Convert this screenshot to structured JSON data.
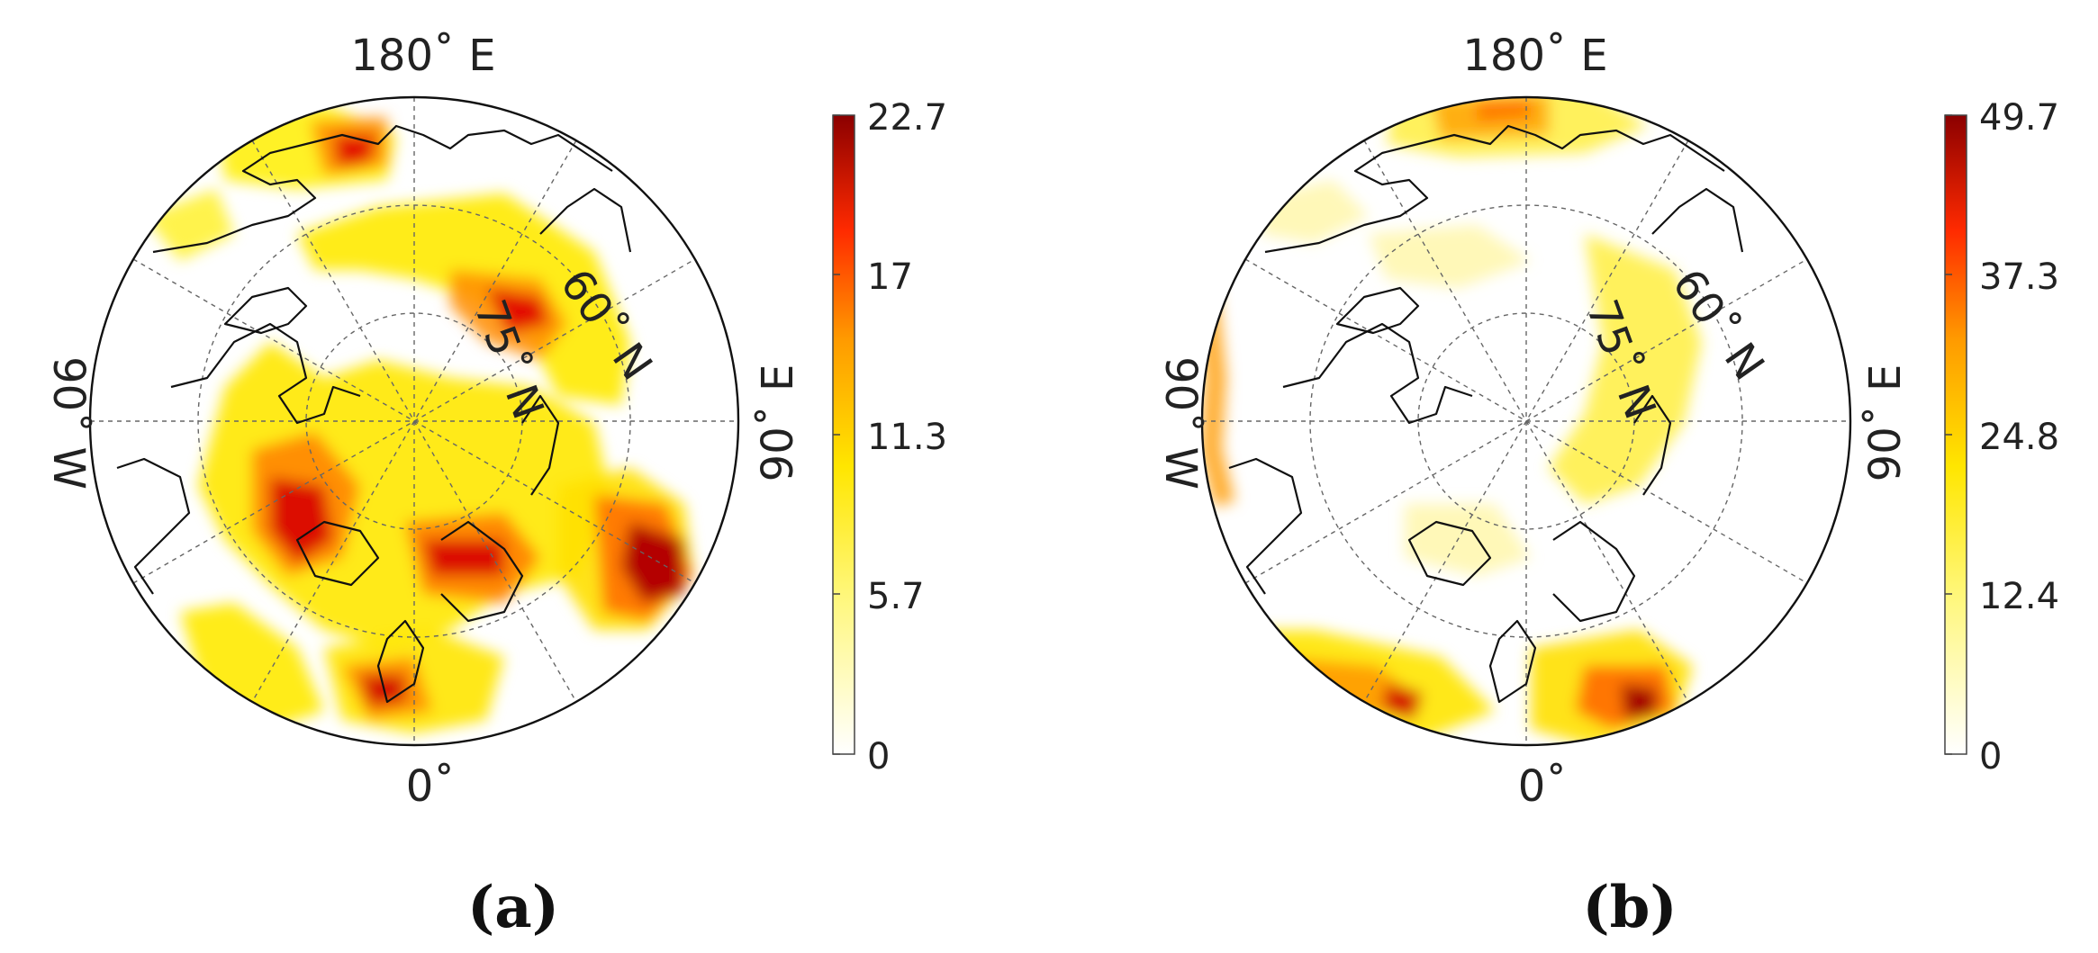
{
  "panels": [
    {
      "caption": "(a)",
      "colorbar": {
        "ticks": [
          "22.7",
          "17",
          "11.3",
          "5.7",
          "0"
        ],
        "max": 22.7,
        "min": 0
      },
      "labels": {
        "top": "180˚ E",
        "bottom": "0˚",
        "left": "90˚ W",
        "right": "90˚ E",
        "lat_inner": "75˚ N",
        "lat_outer": "60˚ N"
      }
    },
    {
      "caption": "(b)",
      "colorbar": {
        "ticks": [
          "49.7",
          "37.3",
          "24.8",
          "12.4",
          "0"
        ],
        "max": 49.7,
        "min": 0
      },
      "labels": {
        "top": "180˚ E",
        "bottom": "0˚",
        "left": "90˚ W",
        "right": "90˚ E",
        "lat_inner": "75˚ N",
        "lat_outer": "60˚ N"
      }
    }
  ],
  "colors": {
    "low": "#ffffff",
    "mid": "#ffff00",
    "high": "#ff6600",
    "max": "#8b0000"
  }
}
